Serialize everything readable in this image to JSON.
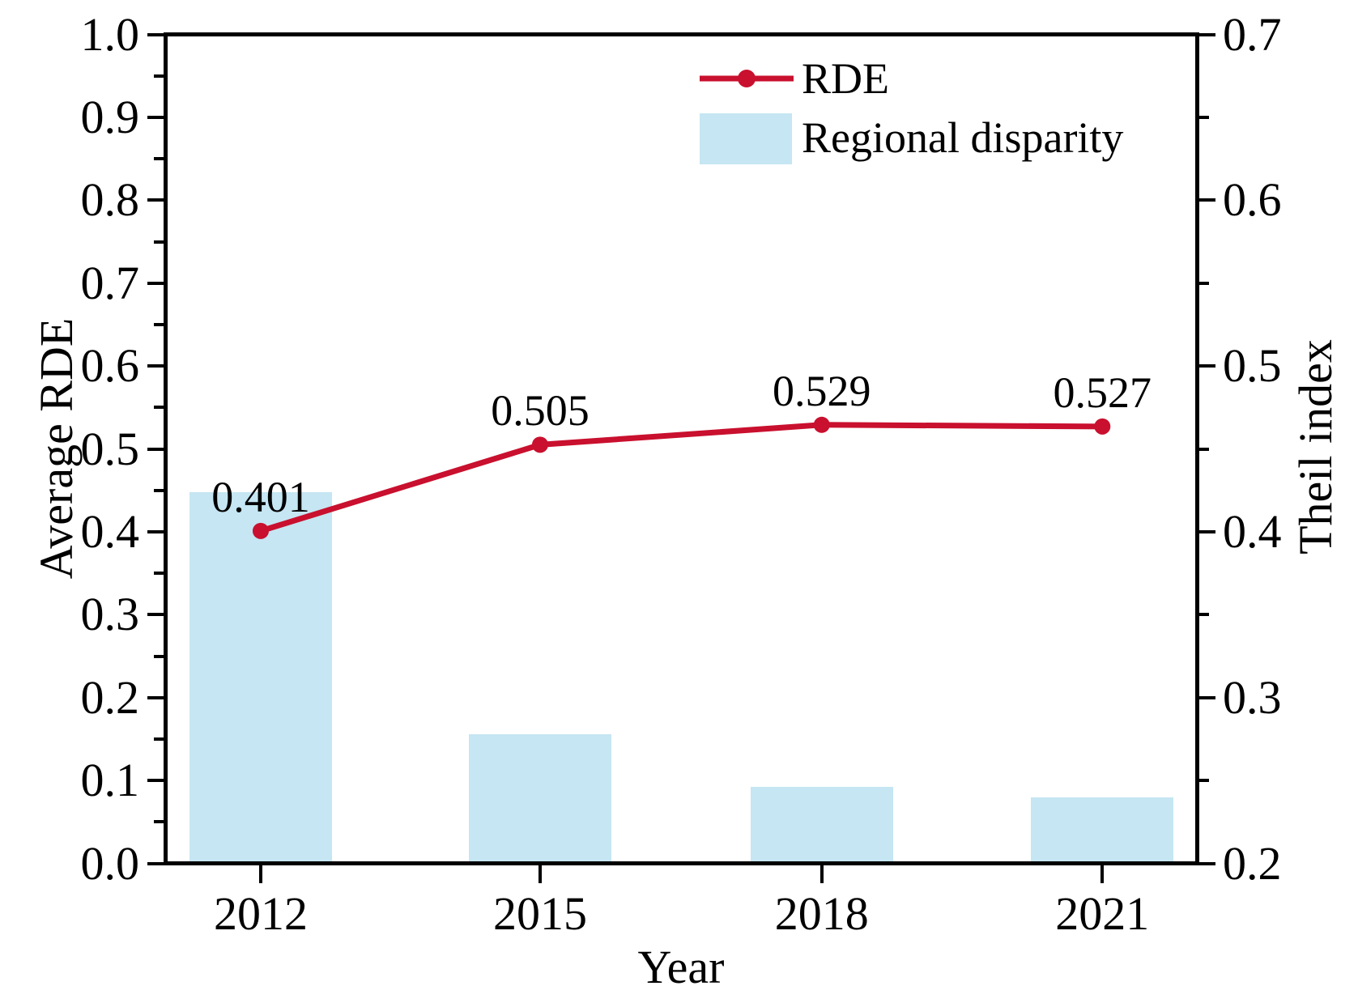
{
  "chart_data": {
    "type": "combo",
    "categories": [
      "2012",
      "2015",
      "2018",
      "2021"
    ],
    "x_axis": {
      "label": "Year"
    },
    "left_axis": {
      "label": "Average RDE",
      "range": [
        0.0,
        1.0
      ],
      "ticks": [
        "0.0",
        "0.1",
        "0.2",
        "0.3",
        "0.4",
        "0.5",
        "0.6",
        "0.7",
        "0.8",
        "0.9",
        "1.0"
      ],
      "minor_step": 0.05
    },
    "right_axis": {
      "label": "Theil index",
      "range": [
        0.2,
        0.7
      ],
      "ticks": [
        "0.2",
        "0.3",
        "0.4",
        "0.5",
        "0.6",
        "0.7"
      ],
      "minor_step": 0.05
    },
    "series": [
      {
        "name": "RDE",
        "type": "line",
        "axis": "left",
        "color": "#c9102e",
        "values": [
          0.401,
          0.505,
          0.529,
          0.527
        ],
        "point_labels": [
          "0.401",
          "0.505",
          "0.529",
          "0.527"
        ]
      },
      {
        "name": "Regional disparity",
        "type": "bar",
        "axis": "right",
        "color": "#c5e6f2",
        "values": [
          0.424,
          0.278,
          0.246,
          0.24
        ]
      }
    ],
    "grid": false,
    "legend_position": "top-center-inside"
  },
  "colors": {
    "line": "#c9102e",
    "marker": "#c9102e",
    "bar_fill": "#c5e6f2",
    "axis": "#000000",
    "background": "#ffffff"
  }
}
